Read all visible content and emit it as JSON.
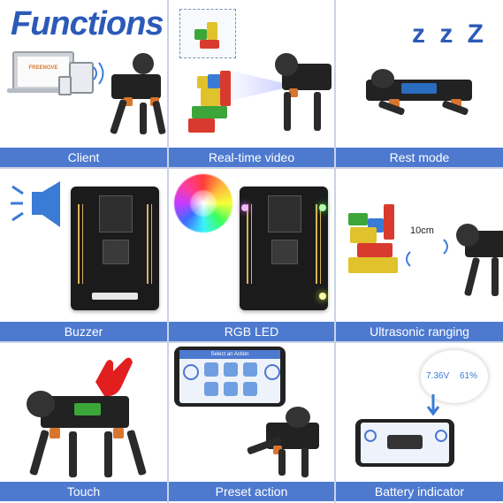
{
  "title": "Functions",
  "brand": "FREENOVE",
  "cells": [
    {
      "label": "Client"
    },
    {
      "label": "Real-time video"
    },
    {
      "label": "Rest mode"
    },
    {
      "label": "Buzzer"
    },
    {
      "label": "RGB LED"
    },
    {
      "label": "Ultrasonic ranging"
    },
    {
      "label": "Touch"
    },
    {
      "label": "Preset action"
    },
    {
      "label": "Battery indicator"
    }
  ],
  "rest_text": "z z Z",
  "distance_text": "10cm",
  "app_header": "Select an Action",
  "battery_voltage": "7.36V",
  "battery_percent": "61%",
  "colors": {
    "accent": "#4d79cf",
    "title": "#2c5ab8",
    "grid": "#c9d3e6"
  }
}
